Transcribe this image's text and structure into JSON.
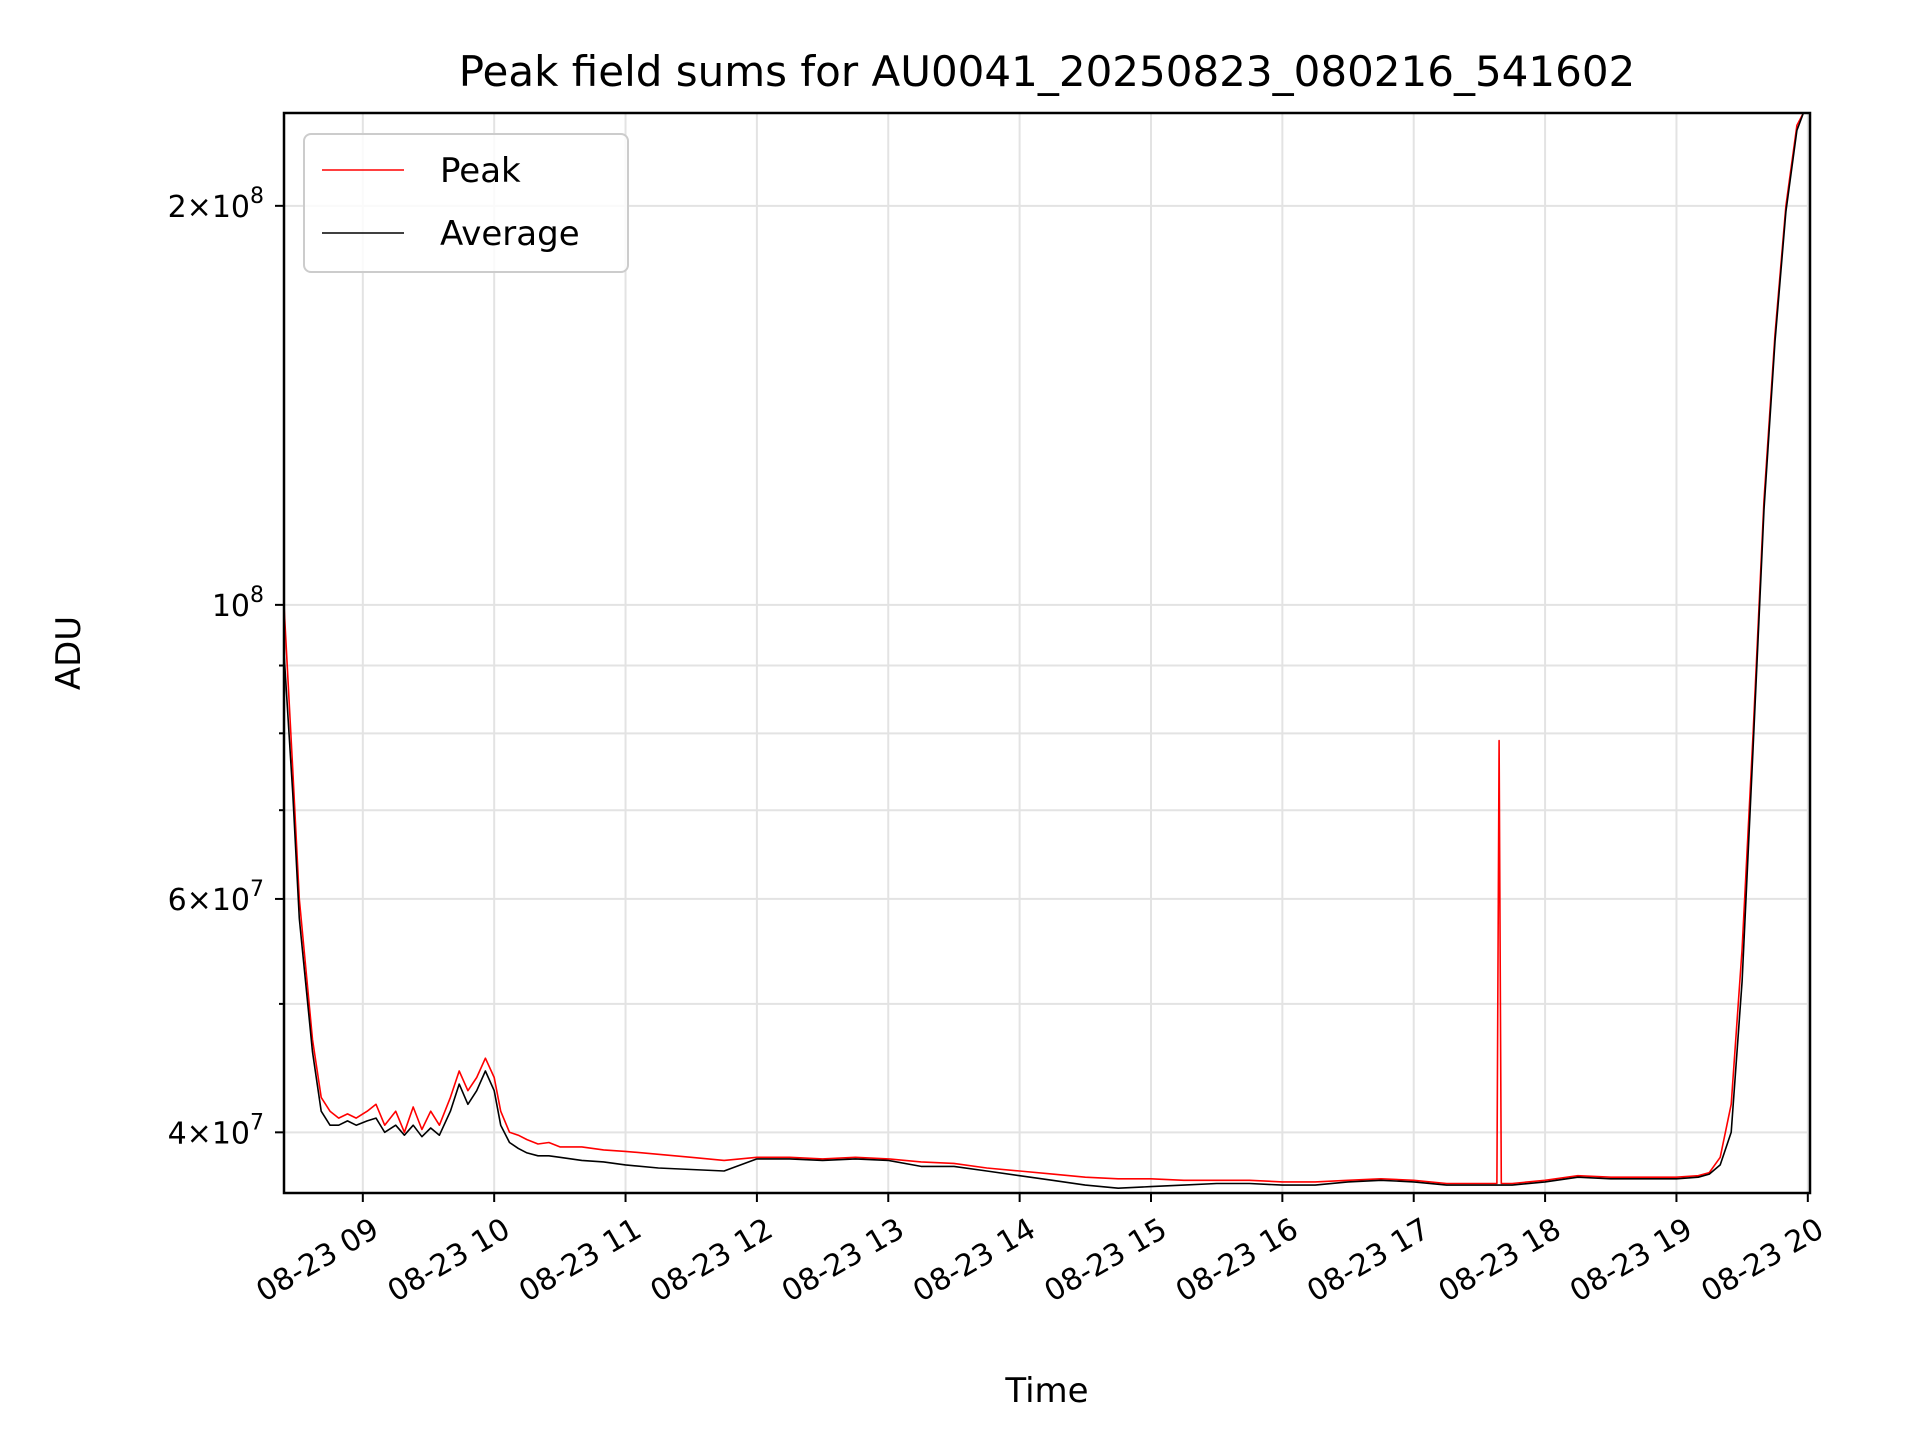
{
  "chart_data": {
    "type": "line",
    "title": "Peak field sums for AU0041_20250823_080216_541602",
    "xlabel": "Time",
    "ylabel": "ADU",
    "yscale": "log",
    "ylim": [
      36000000,
      235000000
    ],
    "xlim": [
      "08-23 08:24",
      "08-23 20:01"
    ],
    "grid": true,
    "legend": "upper left",
    "x_ticks": [
      "08-23 09",
      "08-23 10",
      "08-23 11",
      "08-23 12",
      "08-23 13",
      "08-23 14",
      "08-23 15",
      "08-23 16",
      "08-23 17",
      "08-23 18",
      "08-23 19",
      "08-23 20"
    ],
    "y_ticks": [
      {
        "value": 40000000,
        "mantissa": "4",
        "exp": "7"
      },
      {
        "value": 60000000,
        "mantissa": "6",
        "exp": "7"
      },
      {
        "value": 100000000,
        "mantissa": "",
        "exp": "8"
      },
      {
        "value": 200000000,
        "mantissa": "2",
        "exp": "8"
      }
    ],
    "y_minor_ticks": [
      50000000,
      70000000,
      80000000,
      90000000
    ],
    "series": [
      {
        "name": "Peak",
        "color": "#ff0000",
        "x": [
          "08:24",
          "08:28",
          "08:31",
          "08:37",
          "08:41",
          "08:45",
          "08:49",
          "08:53",
          "08:57",
          "09:02",
          "09:06",
          "09:10",
          "09:15",
          "09:19",
          "09:23",
          "09:27",
          "09:31",
          "09:35",
          "09:40",
          "09:44",
          "09:48",
          "09:52",
          "09:56",
          "10:00",
          "10:03",
          "10:07",
          "10:11",
          "10:15",
          "10:20",
          "10:25",
          "10:30",
          "10:40",
          "10:50",
          "11:00",
          "11:15",
          "11:30",
          "11:45",
          "12:00",
          "12:15",
          "12:30",
          "12:45",
          "13:00",
          "13:15",
          "13:30",
          "13:45",
          "14:00",
          "14:15",
          "14:30",
          "14:45",
          "15:00",
          "15:15",
          "15:30",
          "15:45",
          "16:00",
          "16:15",
          "16:30",
          "16:45",
          "17:00",
          "17:15",
          "17:30",
          "17:38",
          "17:39",
          "17:40",
          "17:45",
          "18:00",
          "18:15",
          "18:30",
          "18:45",
          "19:00",
          "19:10",
          "19:15",
          "19:20",
          "19:25",
          "19:30",
          "19:35",
          "19:40",
          "19:45",
          "19:50",
          "19:55",
          "19:58"
        ],
        "y": [
          100000000,
          75000000,
          60000000,
          47000000,
          42500000,
          41500000,
          41000000,
          41300000,
          41000000,
          41500000,
          42000000,
          40500000,
          41500000,
          40000000,
          41800000,
          40200000,
          41500000,
          40500000,
          42500000,
          44500000,
          43000000,
          44000000,
          45500000,
          44000000,
          41500000,
          40000000,
          39800000,
          39500000,
          39200000,
          39300000,
          39000000,
          39000000,
          38800000,
          38700000,
          38500000,
          38300000,
          38100000,
          38300000,
          38300000,
          38200000,
          38300000,
          38200000,
          38000000,
          37900000,
          37600000,
          37400000,
          37200000,
          37000000,
          36900000,
          36900000,
          36800000,
          36800000,
          36800000,
          36700000,
          36700000,
          36800000,
          36900000,
          36800000,
          36600000,
          36600000,
          36600000,
          79000000,
          36600000,
          36600000,
          36800000,
          37100000,
          37000000,
          37000000,
          37000000,
          37100000,
          37300000,
          38300000,
          42000000,
          55000000,
          80000000,
          120000000,
          160000000,
          200000000,
          230000000,
          235000000
        ]
      },
      {
        "name": "Average",
        "color": "#000000",
        "x": [
          "08:24",
          "08:28",
          "08:31",
          "08:37",
          "08:41",
          "08:45",
          "08:49",
          "08:53",
          "08:57",
          "09:02",
          "09:06",
          "09:10",
          "09:15",
          "09:19",
          "09:23",
          "09:27",
          "09:31",
          "09:35",
          "09:40",
          "09:44",
          "09:48",
          "09:52",
          "09:56",
          "10:00",
          "10:03",
          "10:07",
          "10:11",
          "10:15",
          "10:20",
          "10:25",
          "10:30",
          "10:40",
          "10:50",
          "11:00",
          "11:15",
          "11:30",
          "11:45",
          "12:00",
          "12:15",
          "12:30",
          "12:45",
          "13:00",
          "13:15",
          "13:30",
          "13:45",
          "14:00",
          "14:15",
          "14:30",
          "14:45",
          "15:00",
          "15:15",
          "15:30",
          "15:45",
          "16:00",
          "16:15",
          "16:30",
          "16:45",
          "17:00",
          "17:15",
          "17:30",
          "17:38",
          "17:39",
          "17:40",
          "17:45",
          "18:00",
          "18:15",
          "18:30",
          "18:45",
          "19:00",
          "19:10",
          "19:15",
          "19:20",
          "19:25",
          "19:30",
          "19:35",
          "19:40",
          "19:45",
          "19:50",
          "19:55",
          "19:58"
        ],
        "y": [
          92000000,
          72000000,
          58000000,
          46000000,
          41500000,
          40500000,
          40500000,
          40800000,
          40500000,
          40800000,
          41000000,
          40000000,
          40500000,
          39800000,
          40500000,
          39700000,
          40300000,
          39800000,
          41500000,
          43500000,
          42000000,
          43000000,
          44500000,
          43000000,
          40500000,
          39300000,
          38900000,
          38600000,
          38400000,
          38400000,
          38300000,
          38100000,
          38000000,
          37800000,
          37600000,
          37500000,
          37400000,
          38200000,
          38200000,
          38100000,
          38200000,
          38100000,
          37700000,
          37700000,
          37400000,
          37100000,
          36800000,
          36500000,
          36300000,
          36400000,
          36500000,
          36600000,
          36600000,
          36500000,
          36500000,
          36700000,
          36800000,
          36700000,
          36500000,
          36500000,
          36500000,
          36500000,
          36500000,
          36500000,
          36700000,
          37000000,
          36900000,
          36900000,
          36900000,
          37000000,
          37200000,
          37800000,
          40000000,
          52000000,
          78000000,
          118000000,
          158000000,
          198000000,
          228000000,
          235000000
        ]
      }
    ]
  }
}
